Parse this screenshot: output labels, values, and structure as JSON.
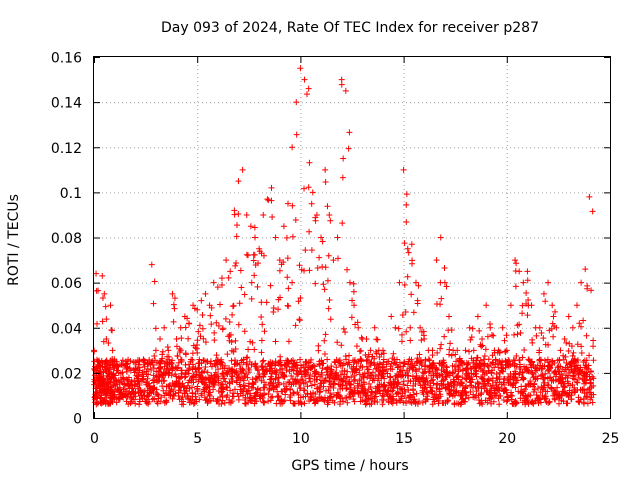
{
  "chart_data": {
    "type": "scatter",
    "title": "Day 093 of 2024, Rate Of TEC Index for receiver p287",
    "xlabel": "GPS time / hours",
    "ylabel": "ROTI / TECUs",
    "xlim": [
      0,
      25
    ],
    "ylim": [
      0,
      0.16
    ],
    "x_ticks": [
      "0",
      "5",
      "10",
      "15",
      "20",
      "25"
    ],
    "y_ticks": [
      "0",
      "0.02",
      "0.04",
      "0.06",
      "0.08",
      "0.1",
      "0.12",
      "0.14",
      "0.16"
    ],
    "x_tick_values": [
      0,
      5,
      10,
      15,
      20,
      25
    ],
    "y_tick_values": [
      0,
      0.02,
      0.04,
      0.06,
      0.08,
      0.1,
      0.12,
      0.14,
      0.16
    ],
    "grid": true,
    "marker": "+",
    "color": "#ff0000",
    "series": [
      {
        "x": [
          0.0,
          0.1,
          0.2,
          0.3,
          0.4,
          0.5,
          0.6,
          0.7,
          0.8,
          0.9,
          1.0,
          1.2,
          1.4,
          1.6,
          1.8,
          2.0,
          2.2,
          2.4,
          2.6,
          2.8,
          3.0,
          3.2,
          3.4,
          3.6,
          3.8,
          4.0,
          4.2,
          4.4,
          4.6,
          4.8,
          5.0,
          5.2,
          5.4,
          5.6,
          5.8,
          6.0,
          6.2,
          6.4,
          6.6,
          6.8,
          7.0,
          7.2,
          7.4,
          7.6,
          7.8,
          8.0,
          8.2,
          8.4,
          8.6,
          8.8,
          9.0,
          9.2,
          9.4,
          9.6,
          9.8,
          10.0,
          10.2,
          10.4,
          10.6,
          10.8,
          11.0,
          11.2,
          11.4,
          11.6,
          11.8,
          12.0,
          12.2,
          12.4,
          12.6,
          12.8,
          13.0,
          13.2,
          13.4,
          13.6,
          13.8,
          14.0,
          14.2,
          14.4,
          14.6,
          14.8,
          15.0,
          15.2,
          15.4,
          15.6,
          15.8,
          16.0,
          16.2,
          16.4,
          16.6,
          16.8,
          17.0,
          17.2,
          17.4,
          17.6,
          17.8,
          18.0,
          18.2,
          18.4,
          18.6,
          18.8,
          19.0,
          19.2,
          19.4,
          19.6,
          19.8,
          20.0,
          20.2,
          20.4,
          20.6,
          20.8,
          21.0,
          21.2,
          21.4,
          21.6,
          21.8,
          22.0,
          22.2,
          22.4,
          22.6,
          22.8,
          23.0,
          23.2,
          23.4,
          23.6,
          23.8,
          24.0
        ],
        "y": [
          0.03,
          0.064,
          0.025,
          0.02,
          0.063,
          0.055,
          0.035,
          0.02,
          0.05,
          0.03,
          0.025,
          0.02,
          0.018,
          0.017,
          0.016,
          0.022,
          0.025,
          0.026,
          0.024,
          0.068,
          0.03,
          0.035,
          0.04,
          0.03,
          0.055,
          0.035,
          0.04,
          0.045,
          0.042,
          0.05,
          0.048,
          0.052,
          0.055,
          0.05,
          0.06,
          0.058,
          0.062,
          0.07,
          0.065,
          0.092,
          0.105,
          0.11,
          0.09,
          0.085,
          0.08,
          0.075,
          0.09,
          0.097,
          0.102,
          0.08,
          0.07,
          0.085,
          0.095,
          0.12,
          0.14,
          0.155,
          0.15,
          0.146,
          0.1,
          0.09,
          0.08,
          0.11,
          0.09,
          0.07,
          0.08,
          0.15,
          0.145,
          0.06,
          0.05,
          0.04,
          0.035,
          0.035,
          0.03,
          0.04,
          0.03,
          0.03,
          0.025,
          0.045,
          0.04,
          0.06,
          0.11,
          0.075,
          0.077,
          0.06,
          0.04,
          0.035,
          0.03,
          0.03,
          0.07,
          0.08,
          0.06,
          0.045,
          0.03,
          0.03,
          0.025,
          0.03,
          0.04,
          0.03,
          0.045,
          0.035,
          0.05,
          0.04,
          0.03,
          0.03,
          0.04,
          0.03,
          0.05,
          0.07,
          0.065,
          0.06,
          0.065,
          0.05,
          0.04,
          0.04,
          0.055,
          0.06,
          0.05,
          0.04,
          0.03,
          0.035,
          0.045,
          0.04,
          0.05,
          0.06,
          0.066,
          0.098
        ]
      }
    ]
  }
}
